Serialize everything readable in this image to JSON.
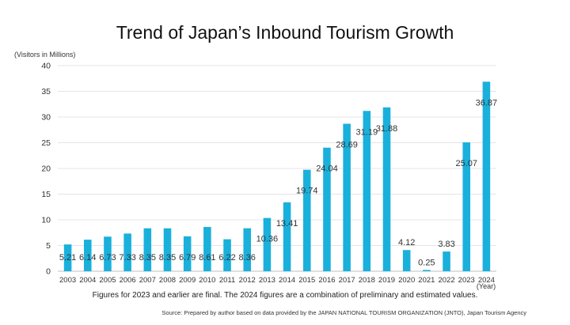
{
  "chart_data": {
    "type": "bar",
    "title": "Trend of Japan’s Inbound Tourism Growth",
    "ylabel": "(Visitors in Millions)",
    "xlabel": "(Year)",
    "ylim": [
      0,
      40
    ],
    "yticks": [
      "0",
      "5",
      "10",
      "15",
      "20",
      "25",
      "30",
      "35",
      "40"
    ],
    "grid": "horizontal",
    "bar_color": "#1ab0dc",
    "categories": [
      "2003",
      "2004",
      "2005",
      "2006",
      "2007",
      "2008",
      "2009",
      "2010",
      "2011",
      "2012",
      "2013",
      "2014",
      "2015",
      "2016",
      "2017",
      "2018",
      "2019",
      "2020",
      "2021",
      "2022",
      "2023",
      "2024"
    ],
    "values": [
      5.21,
      6.14,
      6.73,
      7.33,
      8.35,
      8.35,
      6.79,
      8.61,
      6.22,
      8.36,
      10.36,
      13.41,
      19.74,
      24.04,
      28.69,
      31.19,
      31.88,
      4.12,
      0.25,
      3.83,
      25.07,
      36.87
    ],
    "data_labels": [
      "5.21",
      "6.14",
      "6.73",
      "7.33",
      "8.35",
      "8.35",
      "6.79",
      "8.61",
      "6.22",
      "8.36",
      "10.36",
      "13.41",
      "19.74",
      "24.04",
      "28.69",
      "31.19",
      "31.88",
      "4.12",
      "0.25",
      "3.83",
      "25.07",
      "36.87"
    ]
  },
  "note": "Figures for 2023 and earlier are final. The 2024 figures are a combination of preliminary and estimated values.",
  "source": "Source: Prepared by author based on data provided by the JAPAN NATIONAL TOURISM ORGANIZATION (JNTO), Japan Tourism Agency"
}
